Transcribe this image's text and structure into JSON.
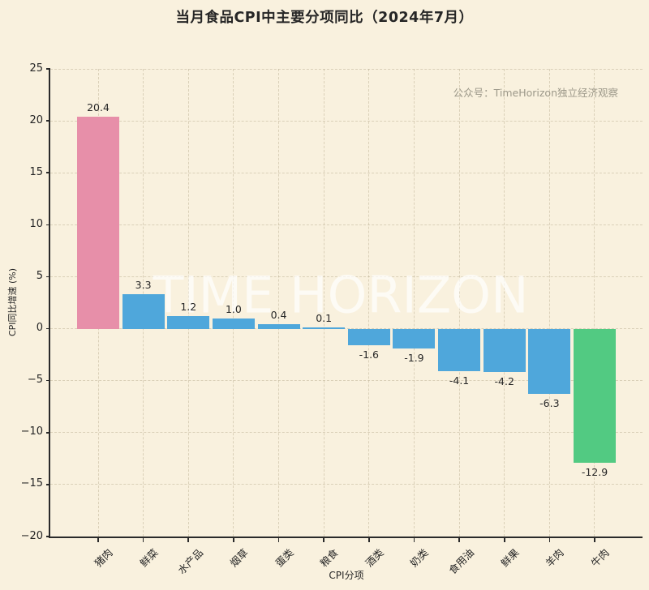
{
  "page": {
    "background_color": "#F9F1DE",
    "text_color": "#2A2A2A"
  },
  "title": "当月食品CPI中主要分项同比（2024年7月）",
  "watermark_small": "公众号：TimeHorizon独立经济观察",
  "watermark_large": "TIME HORIZON",
  "chart_data": {
    "type": "bar",
    "title": "当月食品CPI中主要分项同比（2024年7月）",
    "categories": [
      "猪肉",
      "鲜菜",
      "水产品",
      "烟草",
      "蛋类",
      "粮食",
      "酒类",
      "奶类",
      "食用油",
      "鲜果",
      "羊肉",
      "牛肉"
    ],
    "values": [
      20.4,
      3.3,
      1.2,
      1.0,
      0.4,
      0.1,
      -1.6,
      -1.9,
      -4.1,
      -4.2,
      -6.3,
      -12.9
    ],
    "value_labels": [
      "20.4",
      "3.3",
      "1.2",
      "1.0",
      "0.4",
      "0.1",
      "-1.6",
      "-1.9",
      "-4.1",
      "-4.2",
      "-6.3",
      "-12.9"
    ],
    "bar_colors": [
      "#E78FA9",
      "#4FA7DB",
      "#4FA7DB",
      "#4FA7DB",
      "#4FA7DB",
      "#4FA7DB",
      "#4FA7DB",
      "#4FA7DB",
      "#4FA7DB",
      "#4FA7DB",
      "#4FA7DB",
      "#52CA82"
    ],
    "xlabel": "CPI分项",
    "ylabel": "CPI同比增速 (%)",
    "ylim": [
      -20,
      25
    ],
    "yticks": [
      25,
      20,
      15,
      10,
      5,
      0,
      -5,
      -10,
      -15,
      -20
    ],
    "grid": true,
    "legend": false,
    "colors": {
      "highlight_pink": "#E78FA9",
      "default_blue": "#4FA7DB",
      "highlight_green": "#52CA82",
      "grid": "rgba(168,155,124,0.38)",
      "axis": "#2A2A2A"
    }
  }
}
